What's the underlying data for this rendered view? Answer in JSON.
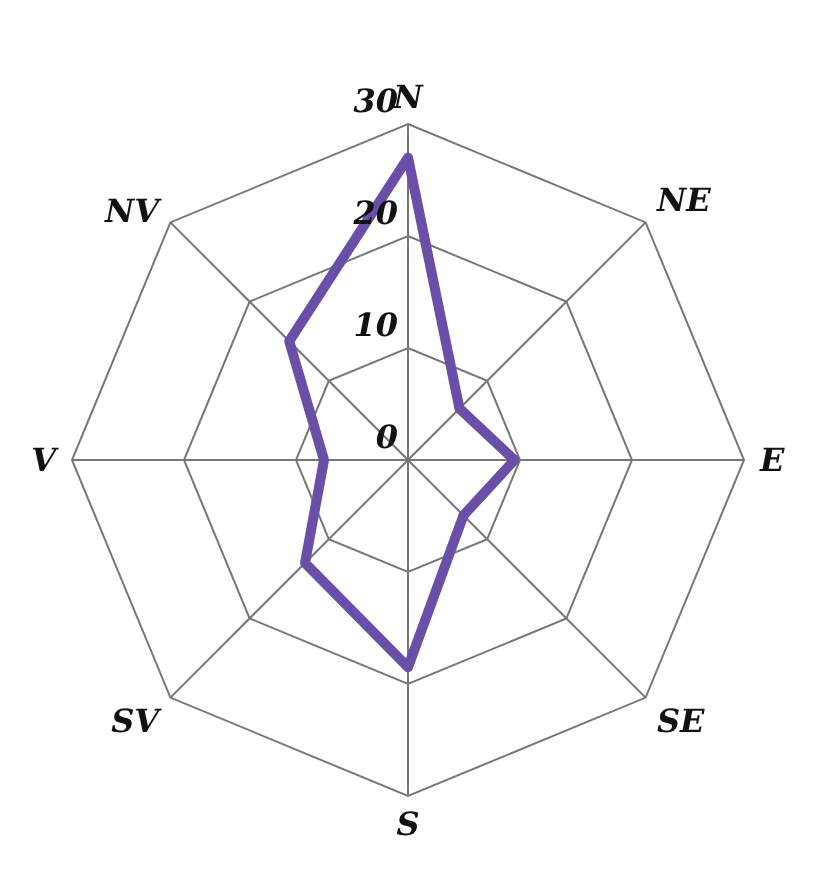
{
  "chart_data": {
    "type": "radar",
    "categories": [
      "N",
      "NE",
      "E",
      "SE",
      "S",
      "SV",
      "V",
      "NV"
    ],
    "series": [
      {
        "color": "#6a4fa8",
        "values": [
          27,
          6.5,
          9.5,
          7,
          18.5,
          13,
          7.5,
          15
        ]
      }
    ],
    "ylim": [
      0,
      30
    ],
    "yticks": [
      0,
      10,
      20,
      30
    ],
    "grid": true,
    "marker": "none",
    "line_style": "solid"
  }
}
